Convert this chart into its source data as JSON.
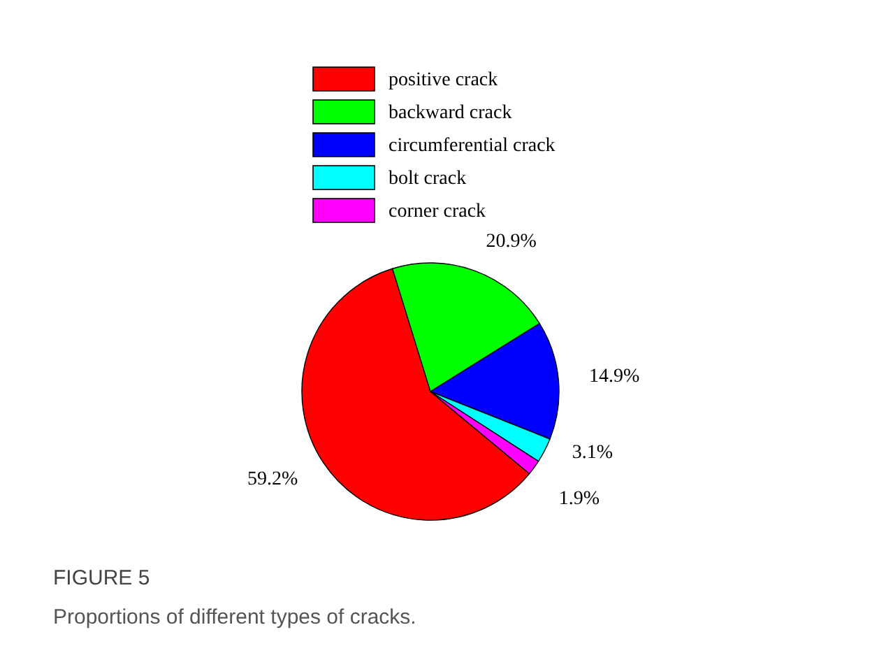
{
  "chart_data": {
    "type": "pie",
    "categories": [
      "positive crack",
      "backward crack",
      "circumferential crack",
      "bolt crack",
      "corner crack"
    ],
    "values": [
      59.2,
      20.9,
      14.9,
      3.1,
      1.9
    ],
    "colors": [
      "#ff0000",
      "#00ff00",
      "#0000ff",
      "#00ffff",
      "#ff00ff"
    ],
    "value_labels": [
      "59.2%",
      "20.9%",
      "14.9%",
      "3.1%",
      "1.9%"
    ],
    "legend": "top",
    "annotations": [
      "FIGURE 5",
      "Proportions of different types of cracks."
    ]
  }
}
